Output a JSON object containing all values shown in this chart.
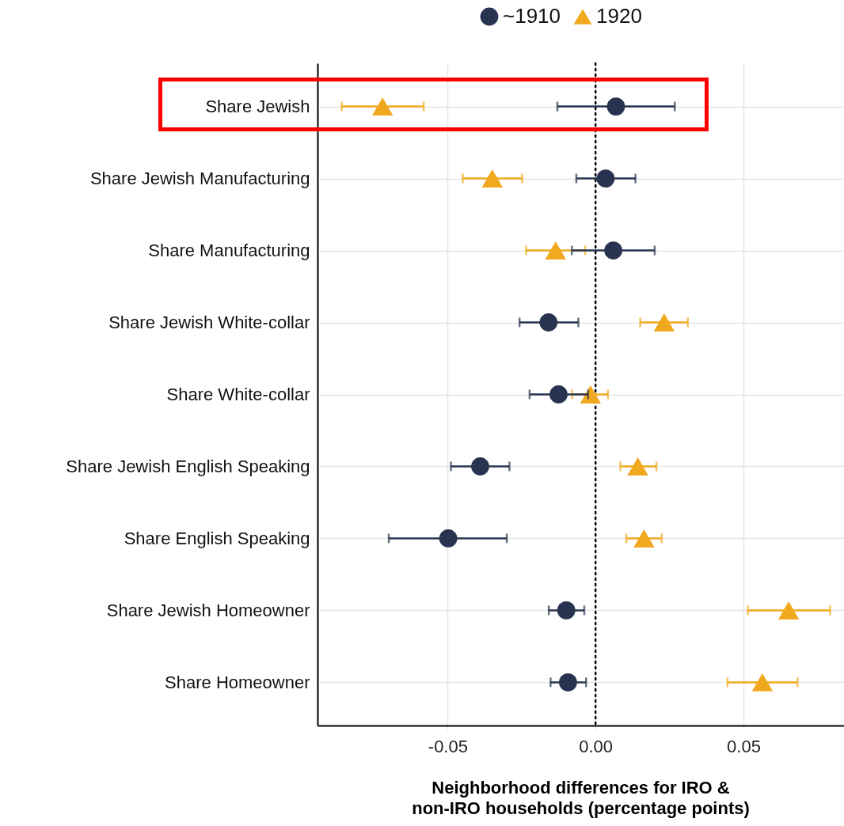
{
  "chart_data": {
    "type": "scatter",
    "orientation": "horizontal",
    "categories": [
      "Share Jewish",
      "Share Jewish Manufacturing",
      "Share Manufacturing",
      "Share Jewish White-collar",
      "Share White-collar",
      "Share Jewish English Speaking",
      "Share English Speaking",
      "Share Jewish Homeowner",
      "Share Homeowner"
    ],
    "series": [
      {
        "name": "~1910",
        "color": "#283350",
        "marker": "circle",
        "values": [
          0.0069,
          0.0034,
          0.006,
          -0.0159,
          -0.0125,
          -0.039,
          -0.0498,
          -0.0099,
          -0.0093
        ],
        "errors": [
          [
            -0.0129,
            0.0268
          ],
          [
            -0.0065,
            0.0135
          ],
          [
            -0.008,
            0.02
          ],
          [
            -0.0257,
            -0.0058
          ],
          [
            -0.0223,
            -0.0025
          ],
          [
            -0.0489,
            -0.0291
          ],
          [
            -0.0699,
            -0.03
          ],
          [
            -0.0158,
            -0.0038
          ],
          [
            -0.0152,
            -0.0032
          ]
        ]
      },
      {
        "name": "1920",
        "color": "#f0a91e",
        "marker": "triangle",
        "values": [
          -0.072,
          -0.0349,
          -0.0135,
          0.0232,
          -0.0017,
          0.0143,
          0.0164,
          0.0653,
          0.0564
        ],
        "errors": [
          [
            -0.0858,
            -0.0581
          ],
          [
            -0.0449,
            -0.0248
          ],
          [
            -0.0235,
            -0.0035
          ],
          [
            0.0151,
            0.0312
          ],
          [
            -0.0079,
            0.0042
          ],
          [
            0.0084,
            0.0206
          ],
          [
            0.0104,
            0.0224
          ],
          [
            0.0515,
            0.0793
          ],
          [
            0.0446,
            0.0683
          ]
        ]
      }
    ],
    "xlabel": "Neighborhood differences for IRO & non-IRO households (percentage points)",
    "xlim": [
      -0.094,
      0.084
    ],
    "xticks": [
      {
        "value": -0.05,
        "label": "-0.05"
      },
      {
        "value": 0,
        "label": "0.00"
      },
      {
        "value": 0.05,
        "label": "0.05"
      }
    ],
    "ref_lines": [
      {
        "axis": "x",
        "value": 0,
        "color": "#000000",
        "line_style": "dotted"
      }
    ],
    "grid": true,
    "legend": "top"
  }
}
